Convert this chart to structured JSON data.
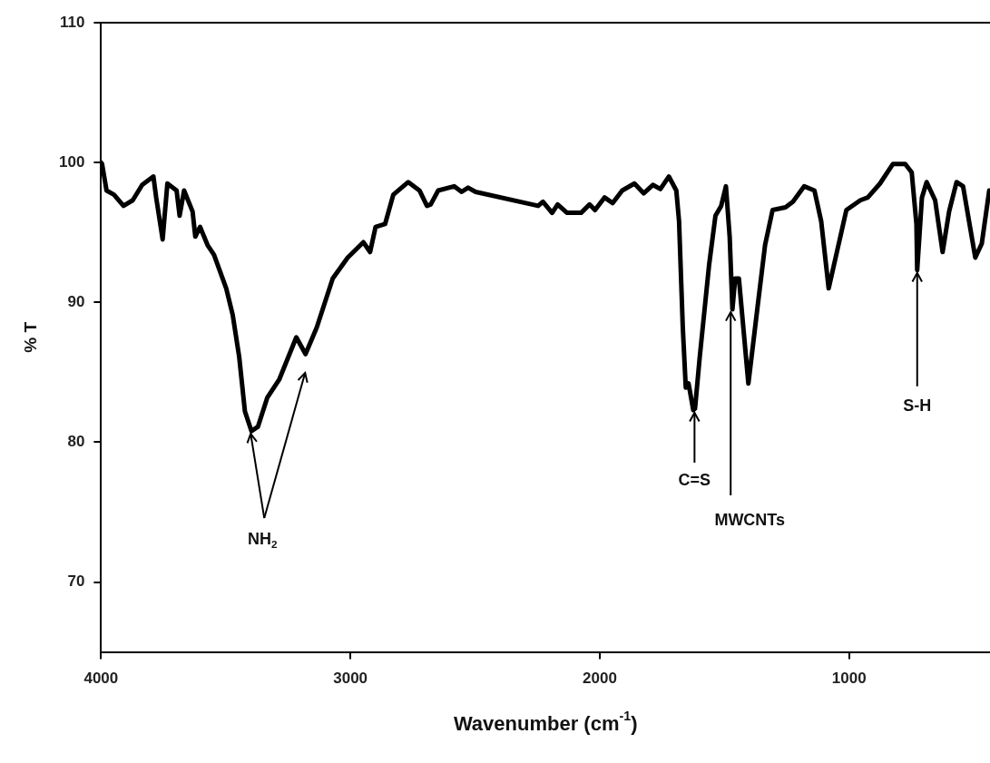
{
  "chart_data": {
    "type": "line",
    "xlabel": "Wavenumber (cm$^{-1}$)",
    "ylabel": "% T",
    "xlim": [
      4000,
      435
    ],
    "xticks": [
      4000,
      3000,
      2000,
      1000
    ],
    "ylim": [
      65,
      110
    ],
    "yticks": [
      70,
      80,
      90,
      100,
      110
    ],
    "grid": false,
    "legend": false,
    "marker": "none",
    "line_style": "solid",
    "series": [
      {
        "color": "#000000",
        "x": [
          4000,
          3996,
          3978,
          3948,
          3910,
          3873,
          3835,
          3790,
          3779,
          3753,
          3734,
          3697,
          3685,
          3667,
          3633,
          3622,
          3603,
          3573,
          3547,
          3498,
          3472,
          3446,
          3423,
          3397,
          3371,
          3333,
          3285,
          3217,
          3180,
          3135,
          3071,
          3011,
          2948,
          2921,
          2899,
          2861,
          2828,
          2768,
          2723,
          2693,
          2678,
          2648,
          2584,
          2554,
          2528,
          2498,
          2247,
          2228,
          2191,
          2169,
          2131,
          2075,
          2041,
          2019,
          1981,
          1948,
          1910,
          1861,
          1824,
          1787,
          1757,
          1723,
          1693,
          1682,
          1667,
          1655,
          1644,
          1625,
          1618,
          1599,
          1562,
          1536,
          1513,
          1494,
          1479,
          1468,
          1457,
          1442,
          1404,
          1367,
          1337,
          1307,
          1255,
          1225,
          1180,
          1139,
          1112,
          1082,
          1049,
          1011,
          955,
          925,
          876,
          824,
          775,
          749,
          730,
          727,
          708,
          689,
          655,
          625,
          599,
          569,
          543,
          494,
          468,
          438
        ],
        "values": [
          100,
          99.9,
          98.0,
          97.7,
          96.9,
          97.3,
          98.4,
          99.0,
          97.5,
          94.5,
          98.5,
          98.0,
          96.2,
          98.0,
          96.5,
          94.7,
          95.4,
          94.1,
          93.4,
          91.0,
          89.1,
          86.1,
          82.2,
          80.8,
          81.1,
          83.2,
          84.5,
          87.5,
          86.3,
          88.2,
          91.7,
          93.2,
          94.3,
          93.6,
          95.4,
          95.6,
          97.7,
          98.6,
          98.0,
          96.9,
          97.0,
          98.0,
          98.3,
          97.9,
          98.2,
          97.9,
          96.9,
          97.2,
          96.4,
          97.0,
          96.4,
          96.4,
          97.0,
          96.6,
          97.5,
          97.1,
          98.0,
          98.5,
          97.8,
          98.4,
          98.1,
          99.0,
          98.0,
          95.8,
          88.2,
          83.9,
          84.2,
          82.3,
          82.4,
          86.1,
          92.6,
          96.2,
          96.9,
          98.3,
          94.7,
          89.5,
          91.7,
          91.7,
          84.2,
          89.7,
          94.1,
          96.6,
          96.8,
          97.2,
          98.3,
          98.0,
          95.8,
          91.0,
          93.6,
          96.6,
          97.3,
          97.5,
          98.5,
          99.9,
          99.9,
          99.3,
          95.6,
          92.3,
          97.5,
          98.6,
          97.3,
          93.6,
          96.5,
          98.6,
          98.3,
          93.2,
          94.2,
          98.0
        ]
      }
    ],
    "annotations": [
      {
        "text": "NH$_{2}$",
        "x": 3400,
        "y": 80.8
      },
      {
        "text": "C=S",
        "x": 1620,
        "y": 82.3
      },
      {
        "text": "MWCNTs",
        "x": 1475,
        "y": 89.5
      },
      {
        "text": "S-H",
        "x": 727,
        "y": 92.3
      }
    ]
  }
}
